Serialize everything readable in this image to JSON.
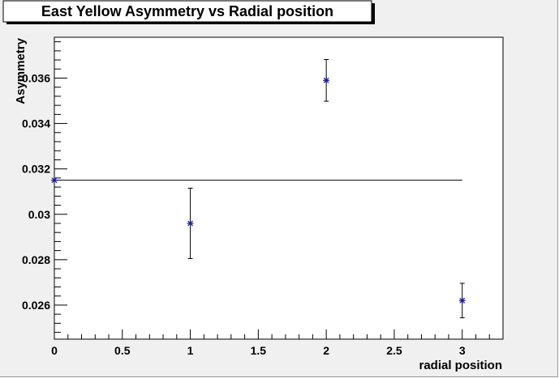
{
  "chart_data": {
    "type": "scatter",
    "title": "East Yellow Asymmetry vs Radial position",
    "xlabel": "radial position",
    "ylabel": "Asymmetry",
    "xlim": [
      0,
      3.3
    ],
    "ylim": [
      0.0245,
      0.0378
    ],
    "x_ticks": [
      0,
      0.5,
      1,
      1.5,
      2,
      2.5,
      3
    ],
    "x_tick_labels": [
      "0",
      "0.5",
      "1",
      "1.5",
      "2",
      "2.5",
      "3"
    ],
    "y_ticks": [
      0.026,
      0.028,
      0.03,
      0.032,
      0.034,
      0.036
    ],
    "y_tick_labels": [
      "0.026",
      "0.028",
      "0.03",
      "0.032",
      "0.034",
      "0.036"
    ],
    "grid": false,
    "series": [
      {
        "x": [
          0,
          1,
          2,
          3
        ],
        "y": [
          0.0315,
          0.0296,
          0.0359,
          0.0262
        ],
        "yerr": [
          0,
          0.00155,
          0.00092,
          0.00076
        ],
        "marker_color": "#1a1a8c"
      }
    ],
    "fit_line": {
      "y": 0.0315,
      "x_range": [
        0,
        3
      ]
    }
  }
}
